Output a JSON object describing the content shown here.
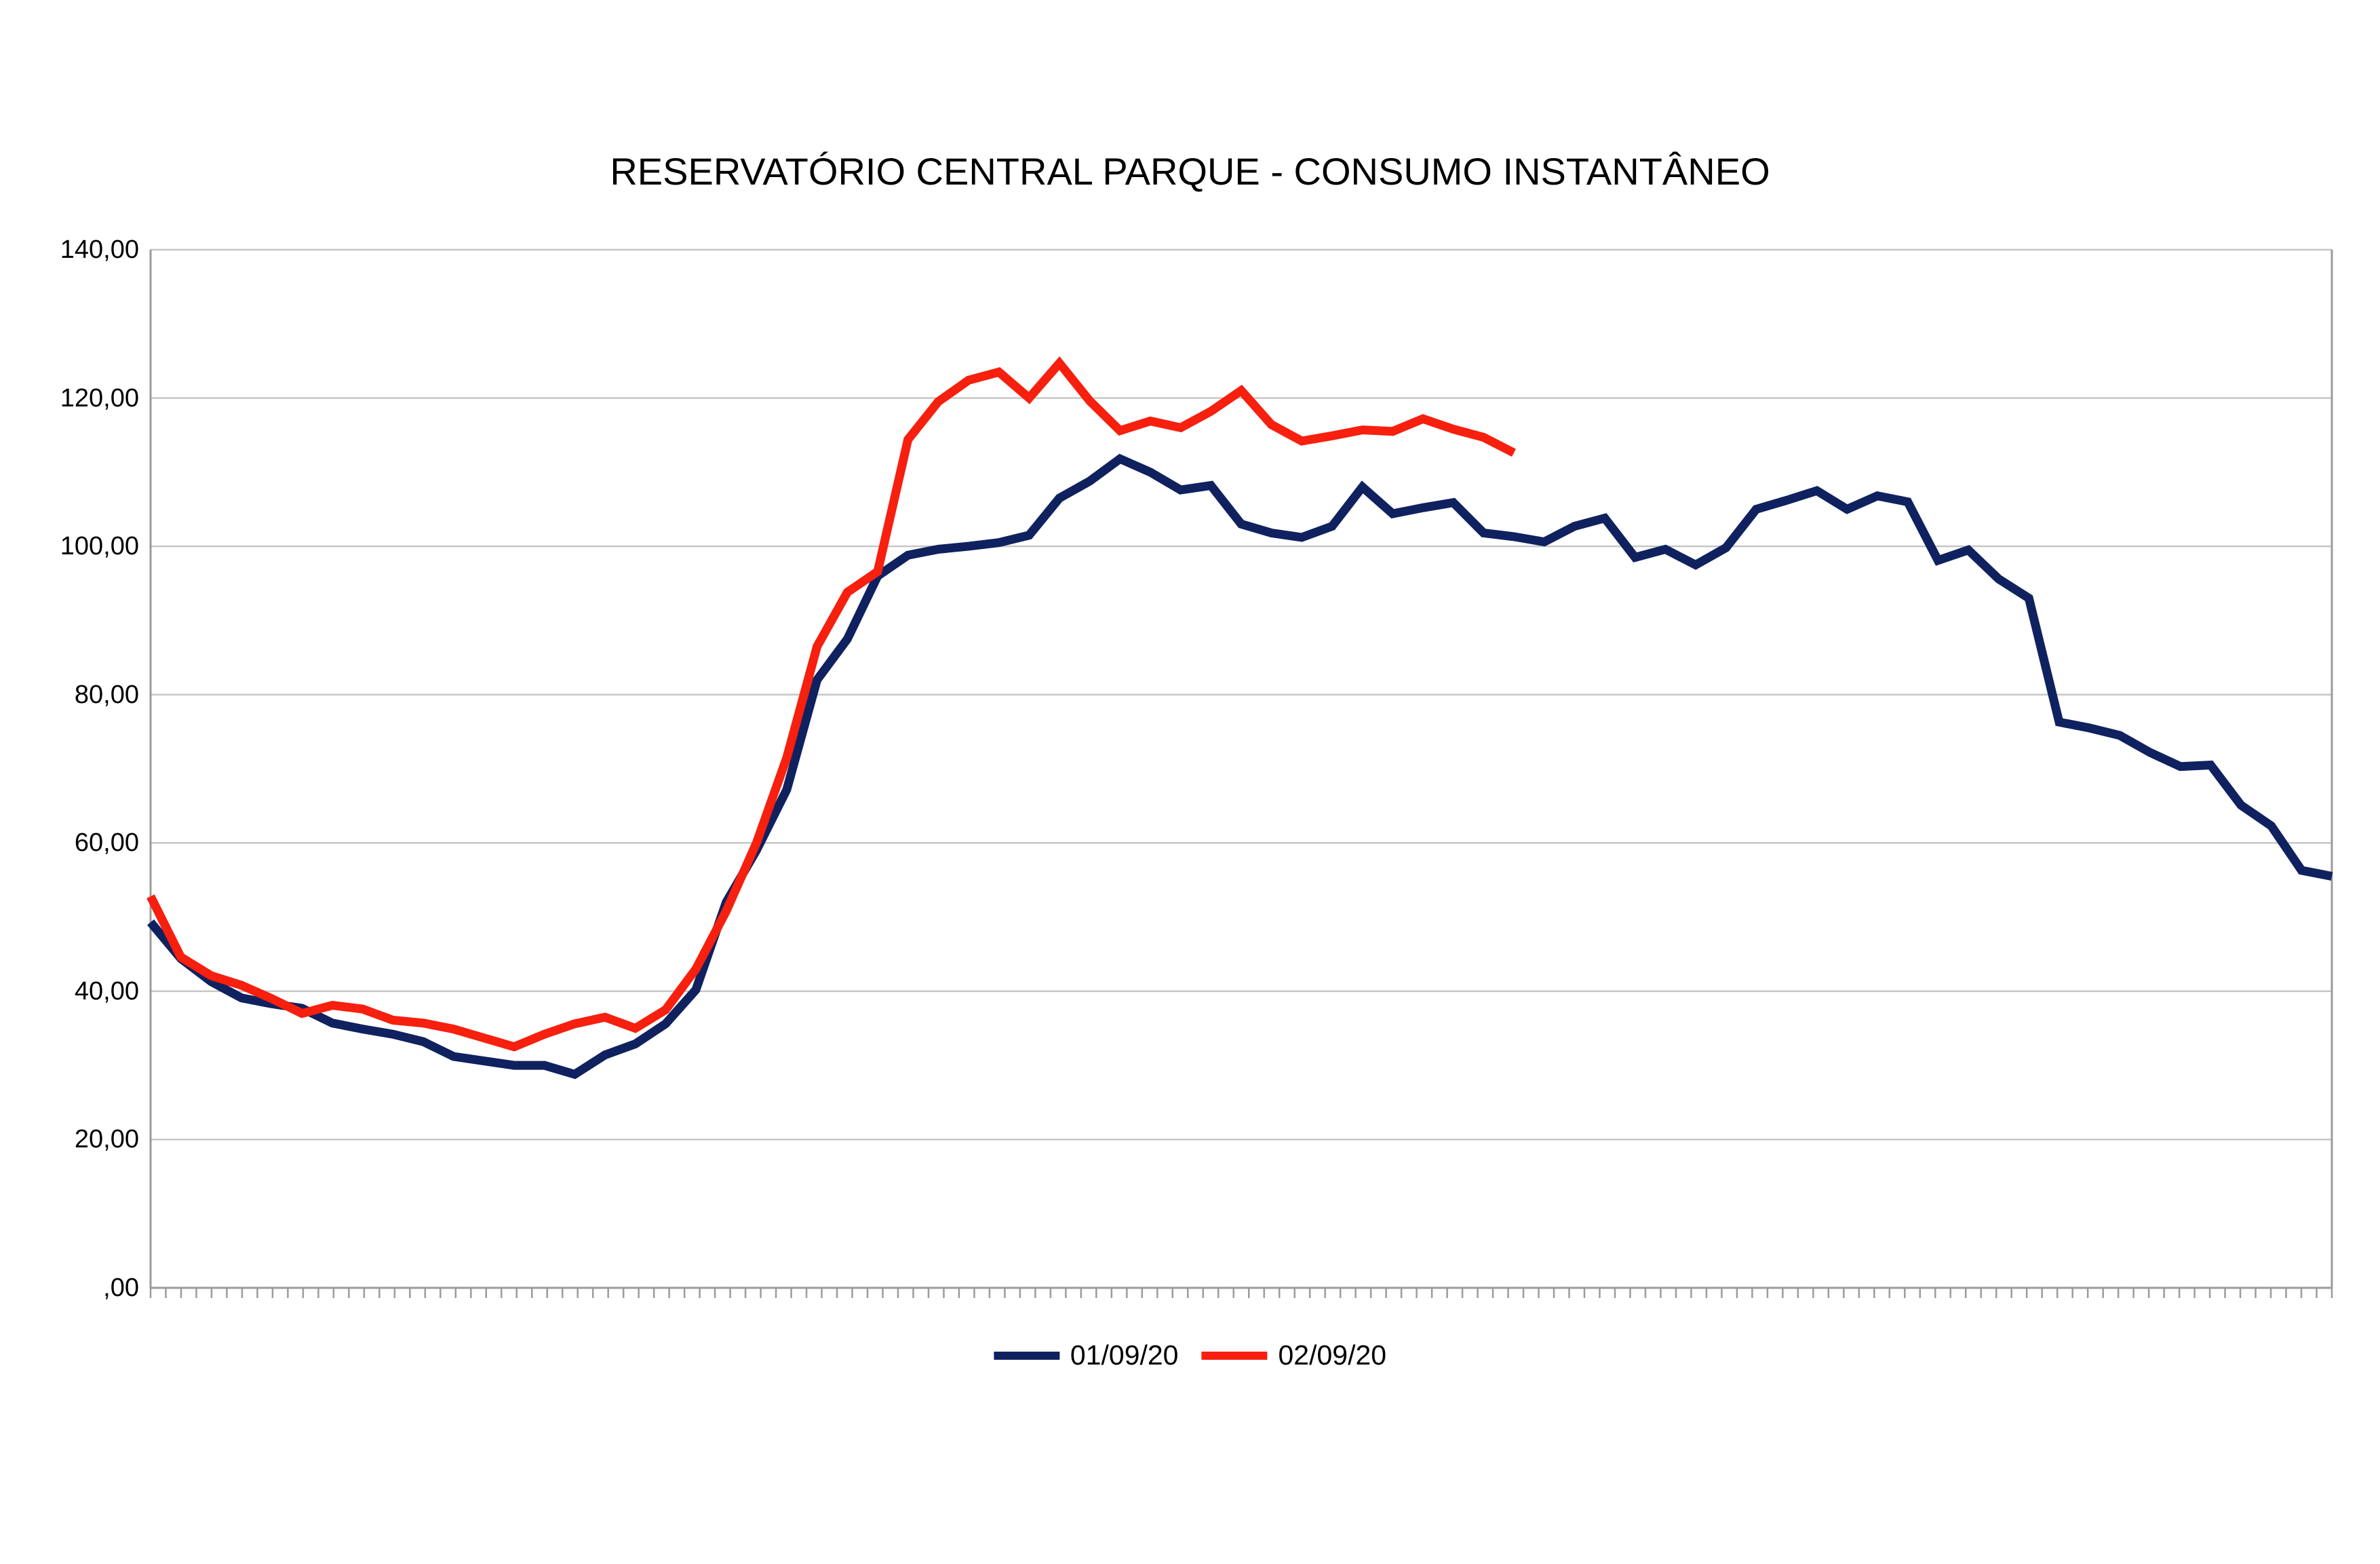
{
  "chart_data": {
    "type": "line",
    "title": "RESERVATÓRIO CENTRAL PARQUE - CONSUMO INSTANTÂNEO",
    "xlabel": "",
    "ylabel": "",
    "grid": true,
    "legend_position": "bottom",
    "x_axis": {
      "tick_marks": 144,
      "tick_labels_visible": false
    },
    "y_axis": {
      "min": 0,
      "max": 140,
      "step": 20,
      "tick_labels_top_to_bottom": [
        "140,00",
        "120,00",
        "100,00",
        "80,00",
        "60,00",
        "40,00",
        "20,00",
        ",00"
      ]
    },
    "sampling_note": "series values sampled every 2 x-ticks (20-min intervals) across the day",
    "series": [
      {
        "name": "01/09/20",
        "color": "#10215f",
        "values": [
          49.3,
          44.4,
          41.3,
          39.1,
          38.3,
          37.7,
          35.7,
          34.9,
          34.2,
          33.2,
          31.2,
          30.6,
          30.0,
          30.0,
          28.8,
          31.4,
          32.9,
          35.6,
          40.2,
          52.0,
          59.0,
          67.2,
          82.0,
          87.5,
          96.0,
          98.8,
          99.6,
          100.0,
          100.5,
          101.5,
          106.5,
          108.8,
          111.8,
          110.0,
          107.6,
          108.2,
          103.0,
          101.8,
          101.2,
          102.7,
          108.0,
          104.4,
          105.2,
          105.9,
          101.8,
          101.3,
          100.6,
          102.7,
          103.8,
          98.5,
          99.6,
          97.5,
          99.8,
          105.0,
          106.2,
          107.5,
          105.0,
          106.8,
          106.0,
          98.1,
          99.5,
          95.6,
          93.0,
          76.3,
          75.5,
          74.5,
          72.2,
          70.3,
          70.5,
          65.1,
          62.3,
          56.3,
          55.5
        ]
      },
      {
        "name": "02/09/20",
        "color": "#f71f0e",
        "values": [
          52.8,
          44.6,
          42.1,
          40.8,
          39.0,
          37.0,
          38.1,
          37.6,
          36.1,
          35.7,
          34.9,
          33.7,
          32.5,
          34.2,
          35.6,
          36.5,
          35.0,
          37.5,
          43.0,
          50.8,
          60.0,
          71.5,
          86.5,
          93.8,
          96.6,
          114.4,
          119.5,
          122.4,
          123.5,
          120.0,
          124.7,
          119.6,
          115.6,
          116.9,
          116.0,
          118.2,
          121.0,
          116.4,
          114.2,
          114.9,
          115.7,
          115.5,
          117.2,
          115.8,
          114.7,
          112.6
        ]
      }
    ],
    "colors": {
      "gridline": "#c6c6c6",
      "axis": "#9b9b9b",
      "background": "#ffffff",
      "text": "#000000"
    }
  }
}
